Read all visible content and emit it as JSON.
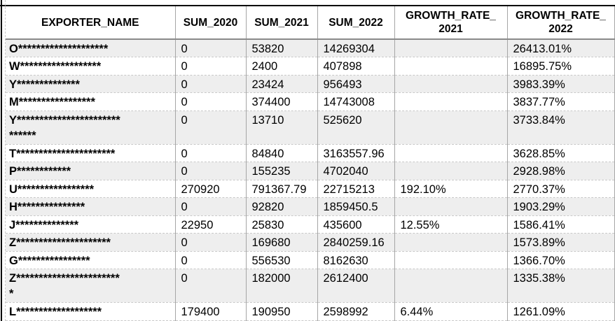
{
  "colors": {
    "row_stripe": "#eeeeee",
    "grid_line": "#a6a6a6",
    "dashed_grid_line": "#c8c8c8",
    "outer_border": "#000000",
    "header_separator": "#8a8a8a",
    "text": "#000000"
  },
  "table": {
    "columns": [
      {
        "line1": "EXPORTER_NAME",
        "line2": ""
      },
      {
        "line1": "SUM_2020",
        "line2": ""
      },
      {
        "line1": "SUM_2021",
        "line2": ""
      },
      {
        "line1": "SUM_2022",
        "line2": ""
      },
      {
        "line1": "GROWTH_RATE_",
        "line2": "2021"
      },
      {
        "line1": "GROWTH_RATE_",
        "line2": "2022"
      }
    ],
    "rows": [
      {
        "name_line1": "O********************",
        "name_line2": "",
        "sum_2020": "0",
        "sum_2021": "53820",
        "sum_2022": "14269304",
        "growth_rate_2021": "",
        "growth_rate_2022": "26413.01%"
      },
      {
        "name_line1": "W******************",
        "name_line2": "",
        "sum_2020": "0",
        "sum_2021": "2400",
        "sum_2022": "407898",
        "growth_rate_2021": "",
        "growth_rate_2022": "16895.75%"
      },
      {
        "name_line1": "Y**************",
        "name_line2": "",
        "sum_2020": "0",
        "sum_2021": "23424",
        "sum_2022": "956493",
        "growth_rate_2021": "",
        "growth_rate_2022": "3983.39%"
      },
      {
        "name_line1": "M*****************",
        "name_line2": "",
        "sum_2020": "0",
        "sum_2021": "374400",
        "sum_2022": "14743008",
        "growth_rate_2021": "",
        "growth_rate_2022": "3837.77%"
      },
      {
        "name_line1": "Y***********************",
        "name_line2": "******",
        "sum_2020": "0",
        "sum_2021": "13710",
        "sum_2022": "525620",
        "growth_rate_2021": "",
        "growth_rate_2022": "3733.84%"
      },
      {
        "name_line1": "T**********************",
        "name_line2": "",
        "sum_2020": "0",
        "sum_2021": "84840",
        "sum_2022": "3163557.96",
        "growth_rate_2021": "",
        "growth_rate_2022": "3628.85%"
      },
      {
        "name_line1": "P************",
        "name_line2": "",
        "sum_2020": "0",
        "sum_2021": "155235",
        "sum_2022": "4702040",
        "growth_rate_2021": "",
        "growth_rate_2022": "2928.98%"
      },
      {
        "name_line1": "U*****************",
        "name_line2": "",
        "sum_2020": "270920",
        "sum_2021": "791367.79",
        "sum_2022": "22715213",
        "growth_rate_2021": "192.10%",
        "growth_rate_2022": "2770.37%"
      },
      {
        "name_line1": "H***************",
        "name_line2": "",
        "sum_2020": "0",
        "sum_2021": "92820",
        "sum_2022": "1859450.5",
        "growth_rate_2021": "",
        "growth_rate_2022": "1903.29%"
      },
      {
        "name_line1": "J**************",
        "name_line2": "",
        "sum_2020": "22950",
        "sum_2021": "25830",
        "sum_2022": "435600",
        "growth_rate_2021": "12.55%",
        "growth_rate_2022": "1586.41%"
      },
      {
        "name_line1": "Z*********************",
        "name_line2": "",
        "sum_2020": "0",
        "sum_2021": "169680",
        "sum_2022": "2840259.16",
        "growth_rate_2021": "",
        "growth_rate_2022": "1573.89%"
      },
      {
        "name_line1": "G****************",
        "name_line2": "",
        "sum_2020": "0",
        "sum_2021": "556530",
        "sum_2022": "8162630",
        "growth_rate_2021": "",
        "growth_rate_2022": "1366.70%"
      },
      {
        "name_line1": "Z***********************",
        "name_line2": "*",
        "sum_2020": "0",
        "sum_2021": "182000",
        "sum_2022": "2612400",
        "growth_rate_2021": "",
        "growth_rate_2022": "1335.38%"
      },
      {
        "name_line1": "L*******************",
        "name_line2": "",
        "sum_2020": "179400",
        "sum_2021": "190950",
        "sum_2022": "2598992",
        "growth_rate_2021": "6.44%",
        "growth_rate_2022": "1261.09%"
      }
    ]
  }
}
